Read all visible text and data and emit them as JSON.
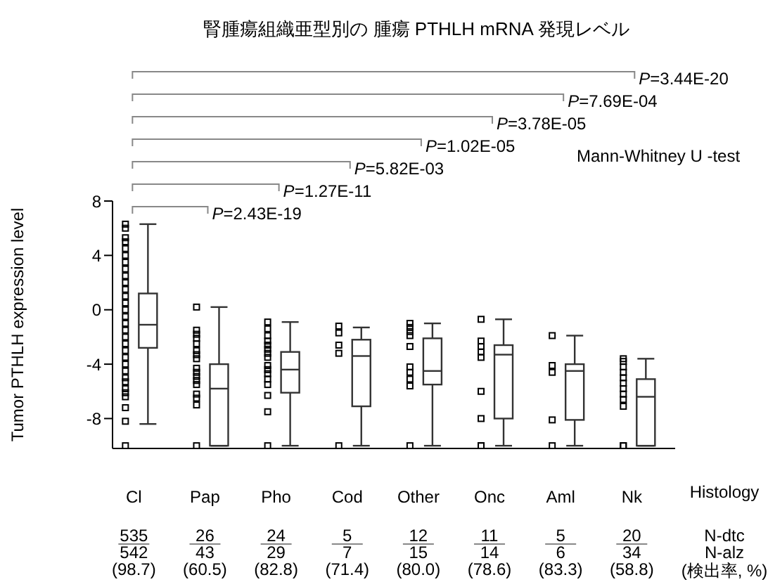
{
  "chart_data": {
    "type": "box",
    "title": "腎腫瘍組織亜型別の 腫瘍 PTHLH mRNA 発現レベル",
    "ylabel": "Tumor PTHLH expression level",
    "categories": [
      "Cl",
      "Pap",
      "Pho",
      "Cod",
      "Other",
      "Onc",
      "Aml",
      "Nk"
    ],
    "ylim": [
      -10.2,
      8
    ],
    "yticks": [
      8,
      4,
      0,
      -4,
      -8
    ],
    "marker": "square",
    "color": "#333333",
    "boxes": [
      {
        "low": -8.4,
        "q1": -2.8,
        "median": -1.1,
        "q3": 1.2,
        "high": 6.3
      },
      {
        "low": -10,
        "q1": -10,
        "median": -5.8,
        "q3": -4,
        "high": 0.2
      },
      {
        "low": -10,
        "q1": -6.1,
        "median": -4.4,
        "q3": -3.1,
        "high": -0.9
      },
      {
        "low": -10,
        "q1": -7.1,
        "median": -3.4,
        "q3": -2.2,
        "high": -1.3
      },
      {
        "low": -10,
        "q1": -5.5,
        "median": -4.5,
        "q3": -2.1,
        "high": -1
      },
      {
        "low": -10,
        "q1": -8,
        "median": -3.3,
        "q3": -2.6,
        "high": -0.7
      },
      {
        "low": -10,
        "q1": -8.1,
        "median": -4.5,
        "q3": -4,
        "high": -1.9
      },
      {
        "low": -10,
        "q1": -10,
        "median": -6.4,
        "q3": -5.1,
        "high": -3.6
      }
    ],
    "series": [
      {
        "type": "scatter",
        "color": "#000000",
        "x": [
          "Cl",
          "Cl",
          "Cl",
          "Cl",
          "Cl",
          "Cl",
          "Cl",
          "Cl",
          "Cl",
          "Cl",
          "Cl",
          "Cl",
          "Cl",
          "Cl",
          "Cl",
          "Cl",
          "Cl",
          "Cl",
          "Cl",
          "Cl",
          "Cl",
          "Cl",
          "Cl",
          "Cl",
          "Cl",
          "Cl",
          "Cl",
          "Cl",
          "Cl",
          "Cl",
          "Cl",
          "Pap",
          "Pap",
          "Pap",
          "Pap",
          "Pap",
          "Pap",
          "Pap",
          "Pap",
          "Pap",
          "Pap",
          "Pap",
          "Pap",
          "Pap",
          "Pap",
          "Pap",
          "Pap",
          "Pap",
          "Pho",
          "Pho",
          "Pho",
          "Pho",
          "Pho",
          "Pho",
          "Pho",
          "Pho",
          "Pho",
          "Pho",
          "Pho",
          "Pho",
          "Pho",
          "Pho",
          "Pho",
          "Pho",
          "Cod",
          "Cod",
          "Cod",
          "Cod",
          "Cod",
          "Other",
          "Other",
          "Other",
          "Other",
          "Other",
          "Other",
          "Other",
          "Other",
          "Other",
          "Other",
          "Onc",
          "Onc",
          "Onc",
          "Onc",
          "Onc",
          "Onc",
          "Onc",
          "Onc",
          "Onc",
          "Aml",
          "Aml",
          "Aml",
          "Aml",
          "Aml",
          "Nk",
          "Nk",
          "Nk",
          "Nk",
          "Nk",
          "Nk",
          "Nk",
          "Nk",
          "Nk",
          "Nk",
          "Nk",
          "Nk"
        ],
        "values": [
          6.3,
          6,
          5.3,
          5,
          4.5,
          4,
          3.5,
          3,
          2.5,
          2,
          1.5,
          1,
          0.5,
          0,
          -0.5,
          -1,
          -1.5,
          -2,
          -2.5,
          -3,
          -3.5,
          -4,
          -4.5,
          -5,
          -5.3,
          -5.8,
          -6.1,
          -6.4,
          -7.2,
          -8.2,
          -10,
          0.2,
          -1.5,
          -1.8,
          -2.1,
          -2.5,
          -3,
          -3.3,
          -3.6,
          -4.3,
          -4.6,
          -4.9,
          -5.2,
          -5.5,
          -6.2,
          -6.5,
          -7,
          -10,
          -0.9,
          -1.4,
          -1.9,
          -2.3,
          -2.6,
          -2.9,
          -3.2,
          -3.5,
          -4.1,
          -4.4,
          -4.7,
          -5.1,
          -5.5,
          -6.3,
          -7.5,
          -10,
          -1.2,
          -1.7,
          -2.6,
          -3.2,
          -10,
          -1,
          -1.3,
          -1.6,
          -1.9,
          -2.7,
          -4.2,
          -4.6,
          -5.1,
          -5.6,
          -10,
          -0.7,
          -2.3,
          -2.7,
          -3.1,
          -3.5,
          -6,
          -8,
          -10,
          -10,
          -1.9,
          -4.1,
          -4.6,
          -8.1,
          -10,
          -3.6,
          -3.8,
          -4.2,
          -4.6,
          -5,
          -5.4,
          -5.8,
          -6.2,
          -6.6,
          -7.1,
          -10,
          -10
        ]
      }
    ],
    "annotations": [
      "P=2.43E-19",
      "P=1.27E-11",
      "P=5.82E-03",
      "P=1.02E-05",
      "P=3.78E-05",
      "P=7.69E-04",
      "P=3.44E-20",
      "Mann-Whitney U -test",
      "Histology",
      "N-dtc",
      "N-alz",
      "(検出率, %)",
      "535",
      "542",
      "(98.7)",
      "26",
      "43",
      "(60.5)",
      "24",
      "29",
      "(82.8)",
      "5",
      "7",
      "(71.4)",
      "12",
      "15",
      "(80.0)",
      "11",
      "14",
      "(78.6)",
      "5",
      "6",
      "(83.3)",
      "20",
      "34",
      "(58.8)"
    ]
  }
}
